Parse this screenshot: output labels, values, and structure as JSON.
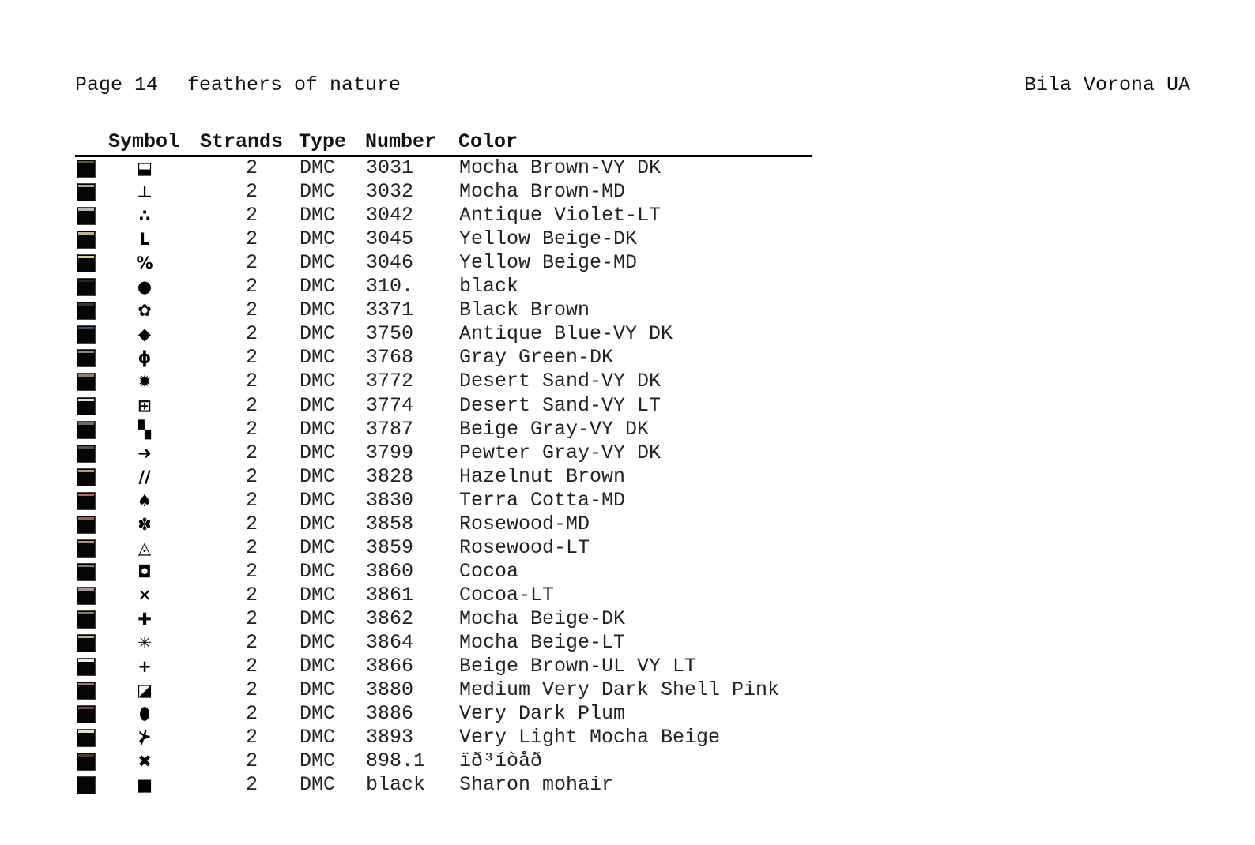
{
  "header": {
    "page": "Page 14",
    "title": "feathers of nature",
    "author": "Bila Vorona UA"
  },
  "table": {
    "columns": [
      "Symbol",
      "Strands",
      "Type",
      "Number",
      "Color"
    ],
    "rows": [
      {
        "swatch": "#5a5840",
        "symbol": "⬓",
        "symbol_icon": "half-filled-square",
        "strands": "2",
        "type": "DMC",
        "number": "3031",
        "color": "Mocha Brown-VY DK"
      },
      {
        "swatch": "#b0a88a",
        "symbol": "⊥",
        "symbol_icon": "up-tack",
        "strands": "2",
        "type": "DMC",
        "number": "3032",
        "color": "Mocha Brown-MD"
      },
      {
        "swatch": "#b8b4bc",
        "symbol": "∴",
        "symbol_icon": "three-dots",
        "strands": "2",
        "type": "DMC",
        "number": "3042",
        "color": "Antique Violet-LT"
      },
      {
        "swatch": "#c8b27a",
        "symbol": "L",
        "symbol_icon": "letter-l",
        "strands": "2",
        "type": "DMC",
        "number": "3045",
        "color": "Yellow Beige-DK"
      },
      {
        "swatch": "#dcd09a",
        "symbol": "%",
        "symbol_icon": "percent",
        "strands": "2",
        "type": "DMC",
        "number": "3046",
        "color": "Yellow Beige-MD"
      },
      {
        "swatch": "#262626",
        "symbol": "●",
        "symbol_icon": "filled-circle",
        "strands": "2",
        "type": "DMC",
        "number": "310.",
        "color": "black"
      },
      {
        "swatch": "#3a3424",
        "symbol": "✿",
        "symbol_icon": "flower",
        "strands": "2",
        "type": "DMC",
        "number": "3371",
        "color": "Black Brown"
      },
      {
        "swatch": "#3c5068",
        "symbol": "◆",
        "symbol_icon": "diamond",
        "strands": "2",
        "type": "DMC",
        "number": "3750",
        "color": "Antique Blue-VY DK"
      },
      {
        "swatch": "#7a9090",
        "symbol": "ϕ",
        "symbol_icon": "phi",
        "strands": "2",
        "type": "DMC",
        "number": "3768",
        "color": "Gray Green-DK"
      },
      {
        "swatch": "#a47a66",
        "symbol": "✹",
        "symbol_icon": "starburst",
        "strands": "2",
        "type": "DMC",
        "number": "3772",
        "color": "Desert Sand-VY DK"
      },
      {
        "swatch": "#ece0cc",
        "symbol": "⊞",
        "symbol_icon": "squared-plus-grid",
        "strands": "2",
        "type": "DMC",
        "number": "3774",
        "color": "Desert Sand-VY LT"
      },
      {
        "swatch": "#6e6a5c",
        "symbol": "▚",
        "symbol_icon": "checker-square",
        "strands": "2",
        "type": "DMC",
        "number": "3787",
        "color": "Beige Gray-VY DK"
      },
      {
        "swatch": "#505458",
        "symbol": "➜",
        "symbol_icon": "right-arrow",
        "strands": "2",
        "type": "DMC",
        "number": "3799",
        "color": "Pewter Gray-VY DK"
      },
      {
        "swatch": "#b89a6a",
        "symbol": "//",
        "symbol_icon": "double-slash",
        "strands": "2",
        "type": "DMC",
        "number": "3828",
        "color": "Hazelnut Brown"
      },
      {
        "swatch": "#b86a5a",
        "symbol": "♠",
        "symbol_icon": "spade",
        "strands": "2",
        "type": "DMC",
        "number": "3830",
        "color": "Terra Cotta-MD"
      },
      {
        "swatch": "#946058",
        "symbol": "✽",
        "symbol_icon": "petal-asterisk",
        "strands": "2",
        "type": "DMC",
        "number": "3858",
        "color": "Rosewood-MD"
      },
      {
        "swatch": "#ba8c80",
        "symbol": "◬",
        "symbol_icon": "nested-triangle",
        "strands": "2",
        "type": "DMC",
        "number": "3859",
        "color": "Rosewood-LT"
      },
      {
        "swatch": "#8e7878",
        "symbol": "◘",
        "symbol_icon": "hollow-square",
        "strands": "2",
        "type": "DMC",
        "number": "3860",
        "color": "Cocoa"
      },
      {
        "swatch": "#a89494",
        "symbol": "✕",
        "symbol_icon": "x-cross",
        "strands": "2",
        "type": "DMC",
        "number": "3861",
        "color": "Cocoa-LT"
      },
      {
        "swatch": "#8a7a5e",
        "symbol": "✚",
        "symbol_icon": "heavy-plus",
        "strands": "2",
        "type": "DMC",
        "number": "3862",
        "color": "Mocha Beige-DK"
      },
      {
        "swatch": "#c4b49a",
        "symbol": "✳",
        "symbol_icon": "eight-spoke-asterisk",
        "strands": "2",
        "type": "DMC",
        "number": "3864",
        "color": "Mocha Beige-LT"
      },
      {
        "swatch": "#f0ece0",
        "symbol": "+",
        "symbol_icon": "thin-plus",
        "strands": "2",
        "type": "DMC",
        "number": "3866",
        "color": "Beige Brown-UL VY LT"
      },
      {
        "swatch": "#b46a6e",
        "symbol": "◪",
        "symbol_icon": "diagonal-half-square",
        "strands": "2",
        "type": "DMC",
        "number": "3880",
        "color": "Medium Very Dark Shell Pink"
      },
      {
        "swatch": "#8a3a52",
        "symbol": "⬮",
        "symbol_icon": "pill",
        "strands": "2",
        "type": "DMC",
        "number": "3886",
        "color": "Very Dark Plum"
      },
      {
        "swatch": "#e8e0cc",
        "symbol": "⊁",
        "symbol_icon": "arrowhead-bar",
        "strands": "2",
        "type": "DMC",
        "number": "3893",
        "color": "Very Light Mocha Beige"
      },
      {
        "swatch": "#4a3a26",
        "symbol": "✖",
        "symbol_icon": "heavy-x",
        "strands": "2",
        "type": "DMC",
        "number": "898.1",
        "color": "ïð³íòåð"
      },
      {
        "swatch": "#000000",
        "symbol": "■",
        "symbol_icon": "filled-square",
        "strands": "2",
        "type": "DMC",
        "number": "black",
        "color": "Sharon mohair"
      }
    ]
  }
}
